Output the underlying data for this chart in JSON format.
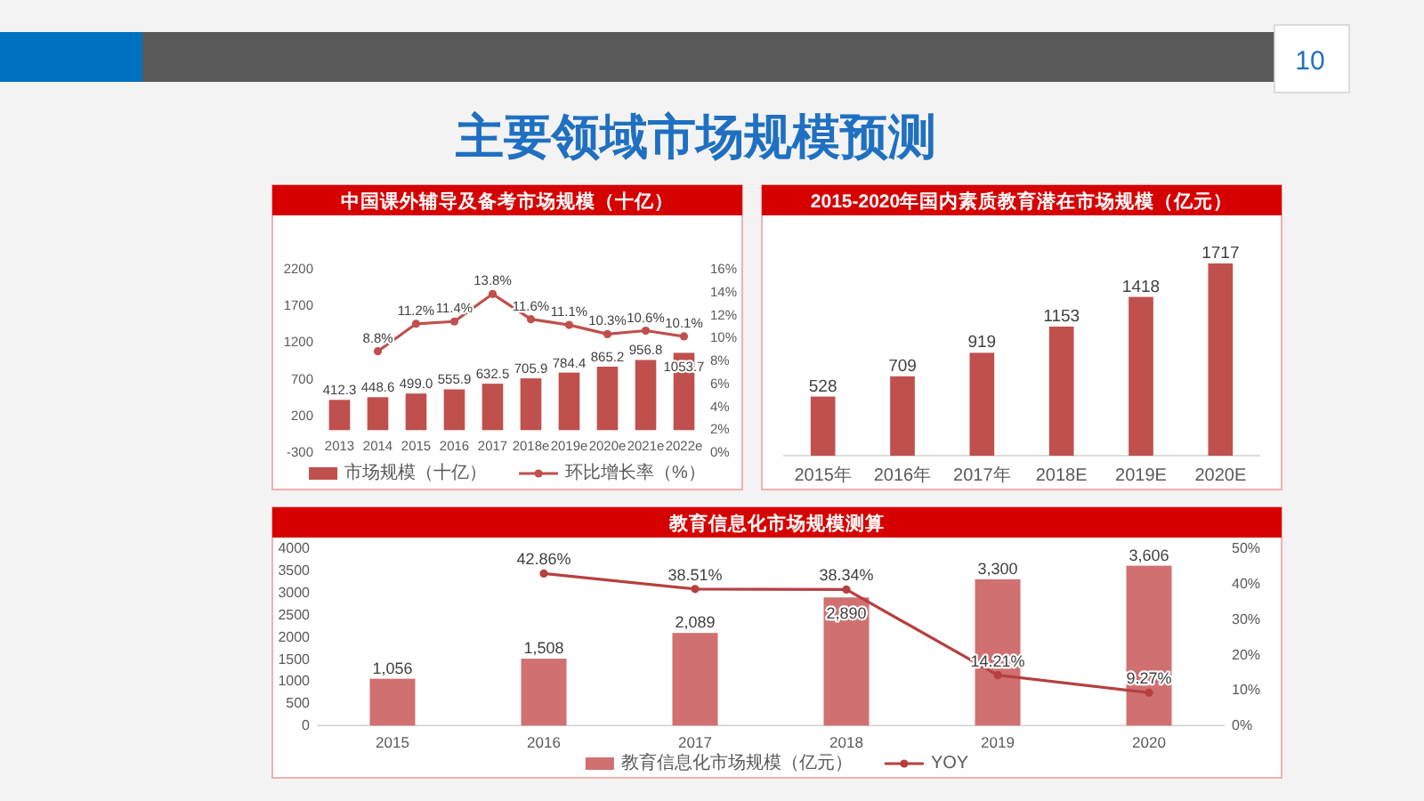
{
  "chart_data": [
    {
      "type": "other",
      "title": "主要领域市场规模预测",
      "annotations": [
        "10"
      ]
    },
    {
      "type": "bar",
      "title": "中国课外辅导及备考市场规模（十亿）",
      "categories": [
        "2013",
        "2014",
        "2015",
        "2016",
        "2017",
        "2018e",
        "2019e",
        "2020e",
        "2021e",
        "2022e"
      ],
      "series": [
        {
          "name": "市场规模（十亿）",
          "type": "bar",
          "color": "#c0504d",
          "values": [
            412.3,
            448.6,
            499.0,
            555.9,
            632.5,
            705.9,
            784.4,
            865.2,
            956.8,
            1053.7
          ],
          "value_labels": [
            "412.3",
            "448.6",
            "499.0",
            "555.9",
            "632.5",
            "705.9",
            "784.4",
            "865.2",
            "956.8",
            "1053.7"
          ]
        },
        {
          "name": "环比增长率（%）",
          "type": "line",
          "axis": "y2",
          "color": "#c0504d",
          "marker": "circle",
          "values": [
            null,
            8.8,
            11.2,
            11.4,
            13.8,
            11.6,
            11.1,
            10.3,
            10.6,
            10.1
          ],
          "value_labels": [
            null,
            "8.8%",
            "11.2%",
            "11.4%",
            "13.8%",
            "11.6%",
            "11.1%",
            "10.3%",
            "10.6%",
            "10.1%"
          ]
        }
      ],
      "ylim": [
        -300,
        2200
      ],
      "yticks": [
        -300,
        200,
        700,
        1200,
        1700,
        2200
      ],
      "y2lim": [
        0,
        16
      ],
      "y2ticks": [
        {
          "value": 0,
          "label": "0%"
        },
        {
          "value": 2,
          "label": "2%"
        },
        {
          "value": 4,
          "label": "4%"
        },
        {
          "value": 6,
          "label": "6%"
        },
        {
          "value": 8,
          "label": "8%"
        },
        {
          "value": 10,
          "label": "10%"
        },
        {
          "value": 12,
          "label": "12%"
        },
        {
          "value": 14,
          "label": "14%"
        },
        {
          "value": 16,
          "label": "16%"
        }
      ],
      "legend": "bottom"
    },
    {
      "type": "bar",
      "title": "2015-2020年国内素质教育潜在市场规模（亿元）",
      "categories": [
        "2015年",
        "2016年",
        "2017年",
        "2018E",
        "2019E",
        "2020E"
      ],
      "values": [
        528,
        709,
        919,
        1153,
        1418,
        1717
      ],
      "color": "#c0504d",
      "data_labels": true
    },
    {
      "type": "bar",
      "title": "教育信息化市场规模测算",
      "categories": [
        "2015",
        "2016",
        "2017",
        "2018",
        "2019",
        "2020"
      ],
      "series": [
        {
          "name": "教育信息化市场规模（亿元）",
          "type": "bar",
          "color": "#d07070",
          "values": [
            1056,
            1508,
            2089,
            2890,
            3300,
            3606
          ],
          "value_labels": [
            "1,056",
            "1,508",
            "2,089",
            "2,890",
            "3,300",
            "3,606"
          ]
        },
        {
          "name": "YOY",
          "type": "line",
          "axis": "y2",
          "color": "#b5403f",
          "marker": "circle",
          "values": [
            null,
            42.86,
            38.51,
            38.34,
            14.21,
            9.27
          ],
          "value_labels": [
            null,
            "42.86%",
            "38.51%",
            "38.34%",
            "14.21%",
            "9.27%"
          ]
        }
      ],
      "ylim": [
        0,
        4000
      ],
      "yticks": [
        0,
        500,
        1000,
        1500,
        2000,
        2500,
        3000,
        3500,
        4000
      ],
      "y2lim": [
        0,
        50
      ],
      "y2ticks": [
        {
          "value": 0,
          "label": "0%"
        },
        {
          "value": 10,
          "label": "10%"
        },
        {
          "value": 20,
          "label": "20%"
        },
        {
          "value": 30,
          "label": "30%"
        },
        {
          "value": 40,
          "label": "40%"
        },
        {
          "value": 50,
          "label": "50%"
        }
      ],
      "legend": "bottom"
    }
  ]
}
